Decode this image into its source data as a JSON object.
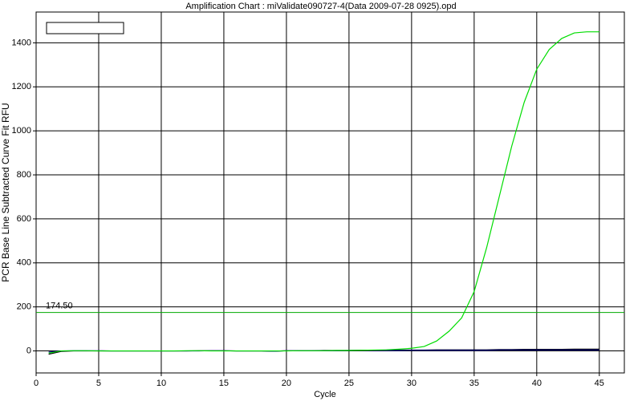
{
  "chart_data": {
    "type": "line",
    "title": "Amplification Chart : miValidate090727-4(Data 2009-07-28 0925).opd",
    "x_label": "Cycle",
    "y_label": "PCR Base Line Subtracted Curve Fit RFU",
    "x": [
      1,
      2,
      3,
      4,
      5,
      6,
      7,
      8,
      9,
      10,
      11,
      12,
      13,
      14,
      15,
      16,
      17,
      18,
      19,
      20,
      21,
      22,
      23,
      24,
      25,
      26,
      27,
      28,
      29,
      30,
      31,
      32,
      33,
      34,
      35,
      36,
      37,
      38,
      39,
      40,
      41,
      42,
      43,
      44,
      45
    ],
    "series": [
      {
        "color": "#00dd00",
        "values": [
          -10,
          0,
          1,
          1,
          0,
          0,
          0,
          0,
          0,
          0,
          0,
          1,
          1,
          0,
          0,
          0,
          0,
          0,
          0,
          0,
          1,
          1,
          1,
          2,
          2,
          3,
          4,
          5,
          8,
          12,
          20,
          45,
          90,
          150,
          270,
          470,
          700,
          930,
          1130,
          1280,
          1370,
          1420,
          1445,
          1450,
          1450
        ]
      },
      {
        "color": "#00008b",
        "values": [
          -5,
          0,
          1,
          1,
          1,
          0,
          0,
          0,
          0,
          0,
          0,
          0,
          0,
          1,
          1,
          0,
          0,
          0,
          -1,
          1,
          1,
          1,
          1,
          1,
          2,
          2,
          2,
          2,
          2,
          3,
          3,
          3,
          3,
          3,
          3,
          3,
          4,
          4,
          4,
          4,
          4,
          4,
          4,
          4,
          4
        ]
      },
      {
        "color": "#000000",
        "values": [
          -15,
          -2,
          0,
          0,
          0,
          0,
          0,
          0,
          0,
          0,
          0,
          0,
          1,
          1,
          1,
          0,
          0,
          0,
          -1,
          1,
          1,
          1,
          2,
          2,
          2,
          3,
          3,
          4,
          4,
          4,
          4,
          5,
          5,
          5,
          5,
          5,
          6,
          6,
          7,
          7,
          7,
          7,
          8,
          8,
          8
        ]
      }
    ],
    "threshold": {
      "value": 174.5,
      "label": "174.50",
      "color": "#00aa00"
    },
    "xlim": [
      0,
      47
    ],
    "xticks": [
      0,
      5,
      10,
      15,
      20,
      25,
      30,
      35,
      40,
      45
    ],
    "ylim": [
      -100,
      1540
    ],
    "yticks": [
      0,
      200,
      400,
      600,
      800,
      1000,
      1200,
      1400
    ],
    "grid": true
  }
}
